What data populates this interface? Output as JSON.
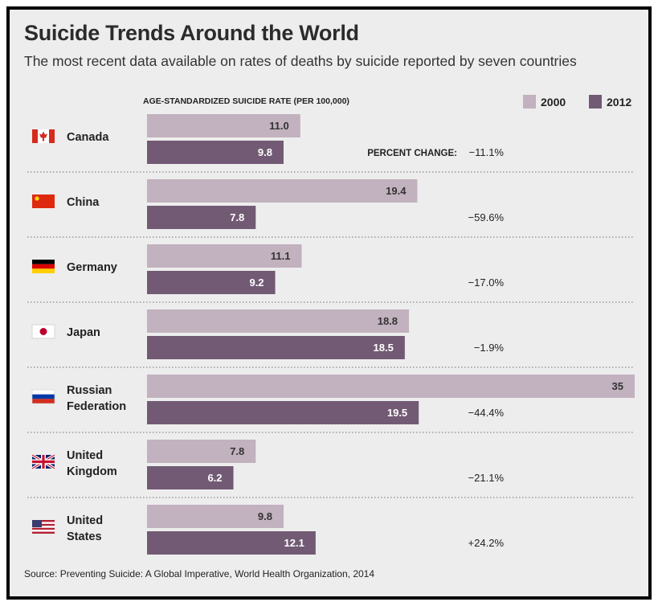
{
  "title": "Suicide Trends Around the World",
  "subtitle": "The most recent data available on rates of deaths by suicide reported by seven countries",
  "source": "Source: Preventing Suicide: A Global Imperative, World Health Organization, 2014",
  "colors": {
    "y2000": "#c2b1be",
    "y2012": "#725a74",
    "background": "#ededed",
    "divider": "#9a9a9a"
  },
  "chart_data": {
    "type": "bar",
    "orientation": "horizontal",
    "axis_title": "AGE-STANDARDIZED SUICIDE RATE (PER 100,000)",
    "percent_change_label": "PERCENT CHANGE:",
    "categories": [
      [
        "Canada"
      ],
      [
        "China"
      ],
      [
        "Germany"
      ],
      [
        "Japan"
      ],
      [
        "Russian",
        "Federation"
      ],
      [
        "United",
        "Kingdom"
      ],
      [
        "United",
        "States"
      ]
    ],
    "flags": [
      "canada-flag",
      "china-flag",
      "germany-flag",
      "japan-flag",
      "russia-flag",
      "uk-flag",
      "us-flag"
    ],
    "series": [
      {
        "name": "2000",
        "values": [
          11.0,
          19.4,
          11.1,
          18.8,
          35,
          7.8,
          9.8
        ],
        "labels": [
          "11.0",
          "19.4",
          "11.1",
          "18.8",
          "35",
          "7.8",
          "9.8"
        ]
      },
      {
        "name": "2012",
        "values": [
          9.8,
          7.8,
          9.2,
          18.5,
          19.5,
          6.2,
          12.1
        ],
        "labels": [
          "9.8",
          "7.8",
          "9.2",
          "18.5",
          "19.5",
          "6.2",
          "12.1"
        ]
      }
    ],
    "percent_change": [
      "−11.1%",
      "−59.6%",
      "−17.0%",
      "−1.9%",
      "−44.4%",
      "−21.1%",
      "+24.2%"
    ],
    "xlim": [
      0,
      35
    ],
    "legend_position": "top-right"
  }
}
